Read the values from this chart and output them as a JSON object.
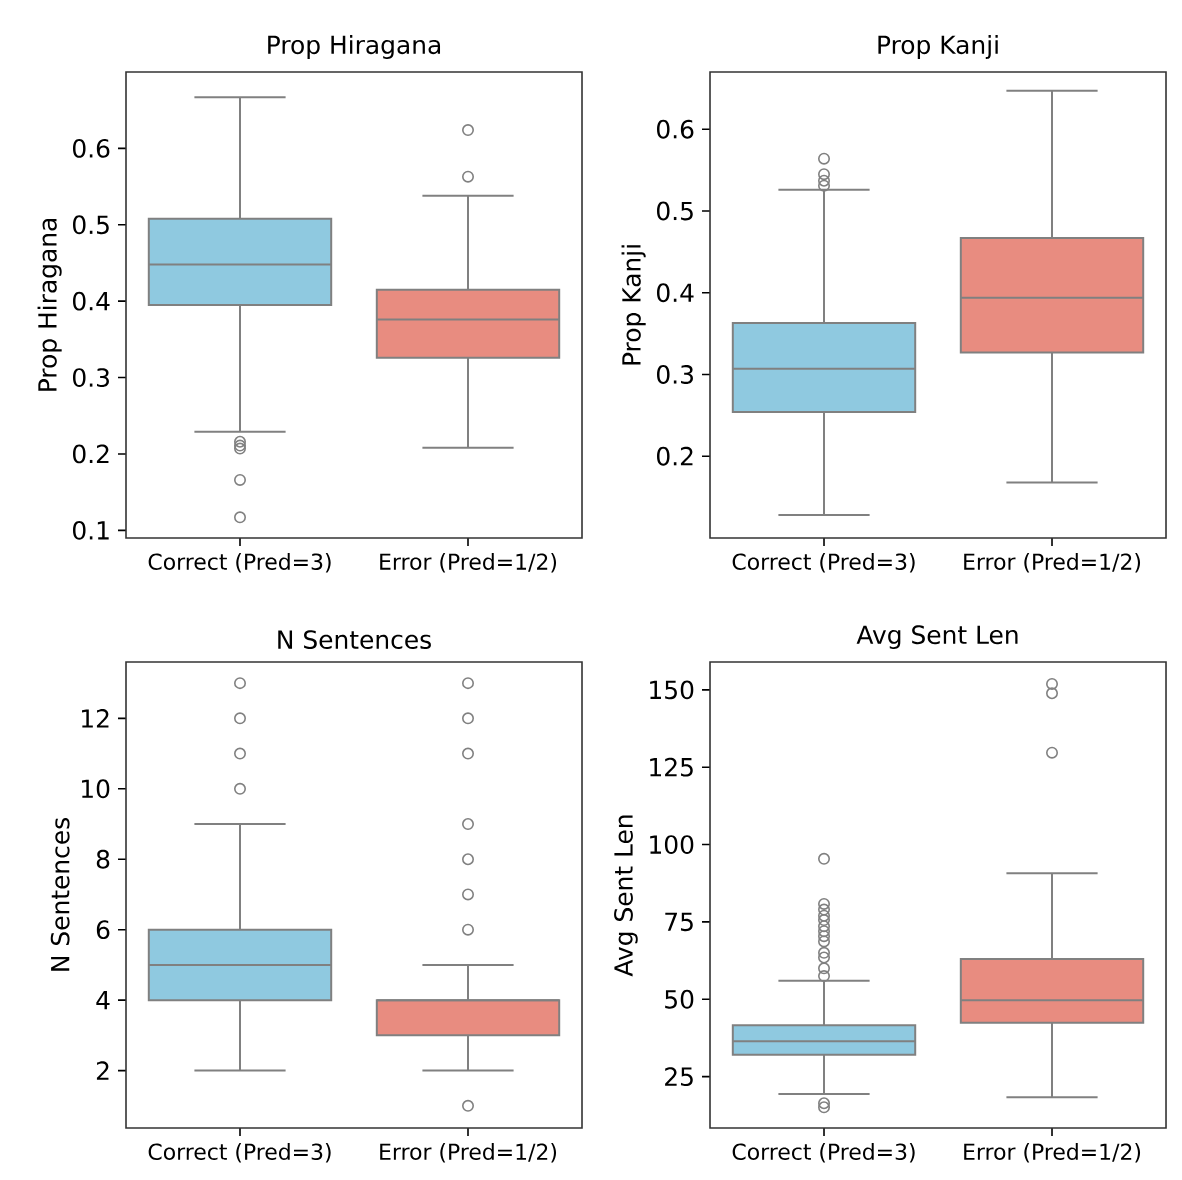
{
  "chart_data": [
    {
      "type": "box",
      "title": "Prop Hiragana",
      "ylabel": "Prop Hiragana",
      "categories": [
        "Correct (Pred=3)",
        "Error (Pred=1/2)"
      ],
      "colors": [
        "#8fc9e0",
        "#e88c80"
      ],
      "ylim": [
        0.09,
        0.7
      ],
      "yticks": [
        0.1,
        0.2,
        0.3,
        0.4,
        0.5,
        0.6
      ],
      "boxes": [
        {
          "low": 0.229,
          "q1": 0.395,
          "median": 0.448,
          "q3": 0.508,
          "high": 0.667,
          "outliers": [
            0.216,
            0.211,
            0.207,
            0.166,
            0.117
          ]
        },
        {
          "low": 0.208,
          "q1": 0.326,
          "median": 0.376,
          "q3": 0.415,
          "high": 0.538,
          "outliers": [
            0.624,
            0.563
          ]
        }
      ]
    },
    {
      "type": "box",
      "title": "Prop Kanji",
      "ylabel": "Prop Kanji",
      "categories": [
        "Correct (Pred=3)",
        "Error (Pred=1/2)"
      ],
      "colors": [
        "#8fc9e0",
        "#e88c80"
      ],
      "ylim": [
        0.1,
        0.67
      ],
      "yticks": [
        0.2,
        0.3,
        0.4,
        0.5,
        0.6
      ],
      "boxes": [
        {
          "low": 0.128,
          "q1": 0.254,
          "median": 0.307,
          "q3": 0.363,
          "high": 0.526,
          "outliers": [
            0.564,
            0.545,
            0.537,
            0.531
          ]
        },
        {
          "low": 0.168,
          "q1": 0.327,
          "median": 0.394,
          "q3": 0.467,
          "high": 0.647
        }
      ]
    },
    {
      "type": "box",
      "title": "N Sentences",
      "ylabel": "N Sentences",
      "categories": [
        "Correct (Pred=3)",
        "Error (Pred=1/2)"
      ],
      "colors": [
        "#8fc9e0",
        "#e88c80"
      ],
      "ylim": [
        0.37,
        13.6
      ],
      "yticks": [
        2,
        4,
        6,
        8,
        10,
        12
      ],
      "boxes": [
        {
          "low": 2,
          "q1": 4,
          "median": 5,
          "q3": 6,
          "high": 9,
          "outliers": [
            10,
            11,
            12,
            13
          ]
        },
        {
          "low": 2,
          "q1": 3,
          "median": 4,
          "q3": 4,
          "high": 5,
          "outliers": [
            1,
            6,
            7,
            8,
            9,
            11,
            12,
            13
          ]
        }
      ]
    },
    {
      "type": "box",
      "title": "Avg Sent Len",
      "ylabel": "Avg Sent Len",
      "categories": [
        "Correct (Pred=3)",
        "Error (Pred=1/2)"
      ],
      "colors": [
        "#8fc9e0",
        "#e88c80"
      ],
      "ylim": [
        8.4,
        159
      ],
      "yticks": [
        25,
        50,
        75,
        100,
        125,
        150
      ],
      "boxes": [
        {
          "low": 19.4,
          "q1": 32.1,
          "median": 36.4,
          "q3": 41.6,
          "high": 56.0,
          "outliers": [
            16.4,
            15.1,
            95.4,
            80.8,
            79.0,
            77.0,
            75.6,
            73.6,
            72.0,
            70.4,
            68.7,
            65.0,
            63.5,
            60.0,
            57.5
          ]
        },
        {
          "low": 18.3,
          "q1": 42.4,
          "median": 49.7,
          "q3": 63.0,
          "high": 90.7,
          "outliers": [
            151.9,
            148.9,
            129.7
          ]
        }
      ]
    }
  ]
}
